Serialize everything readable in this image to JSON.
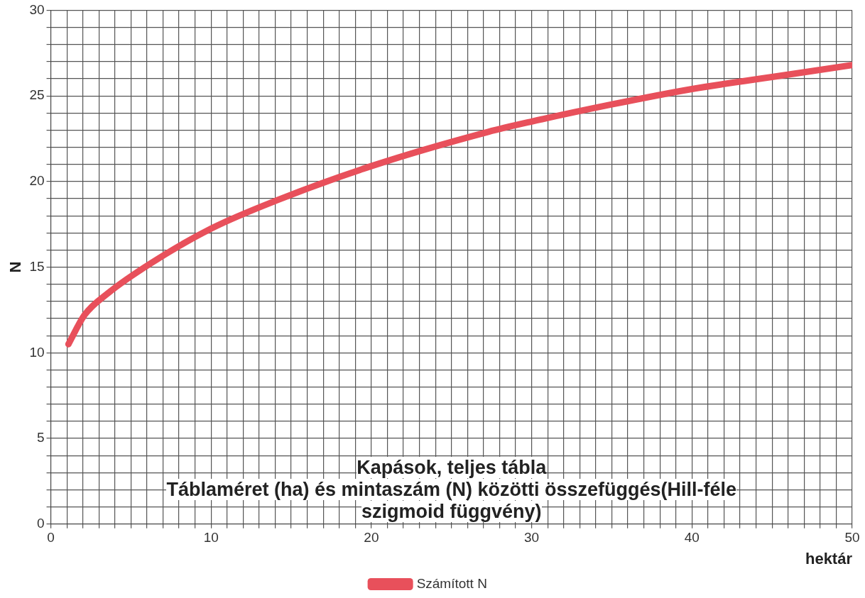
{
  "chart_data": {
    "type": "line",
    "title": "Kapások, teljes tábla",
    "subtitle": "Táblaméret (ha) és mintaszám (N) közötti összefüggés(Hill-féle szigmoid függvény)",
    "xlabel": "hektár",
    "ylabel": "N",
    "series": [
      {
        "name": "Számított N",
        "color": "#e8505b",
        "x": [
          1.1,
          2.1,
          3.6,
          6.2,
          10,
          14.1,
          20,
          27.3,
          30,
          35,
          40,
          45,
          50
        ],
        "values": [
          10.5,
          12.2,
          13.5,
          15.2,
          17.25,
          18.9,
          20.9,
          22.9,
          23.5,
          24.5,
          25.4,
          26.1,
          26.8
        ]
      }
    ],
    "xlim": [
      0,
      50
    ],
    "ylim": [
      0,
      30
    ],
    "xticks": [
      0,
      {
        "value": 1,
        "label": null
      },
      {
        "value": 2,
        "label": null
      },
      {
        "value": 3,
        "label": null
      },
      {
        "value": 4,
        "label": null
      },
      {
        "value": 5,
        "label": null
      },
      {
        "value": 6,
        "label": null
      },
      {
        "value": 7,
        "label": null
      },
      {
        "value": 8,
        "label": null
      },
      {
        "value": 9,
        "label": null
      },
      10,
      {
        "value": 11,
        "label": null
      },
      {
        "value": 12,
        "label": null
      },
      {
        "value": 13,
        "label": null
      },
      {
        "value": 14,
        "label": null
      },
      {
        "value": 15,
        "label": null
      },
      {
        "value": 16,
        "label": null
      },
      {
        "value": 17,
        "label": null
      },
      {
        "value": 18,
        "label": null
      },
      {
        "value": 19,
        "label": null
      },
      20,
      {
        "value": 21,
        "label": null
      },
      {
        "value": 22,
        "label": null
      },
      {
        "value": 23,
        "label": null
      },
      {
        "value": 24,
        "label": null
      },
      {
        "value": 25,
        "label": null
      },
      {
        "value": 26,
        "label": null
      },
      {
        "value": 27,
        "label": null
      },
      {
        "value": 28,
        "label": null
      },
      {
        "value": 29,
        "label": null
      },
      30,
      {
        "value": 31,
        "label": null
      },
      {
        "value": 32,
        "label": null
      },
      {
        "value": 33,
        "label": null
      },
      {
        "value": 34,
        "label": null
      },
      {
        "value": 35,
        "label": null
      },
      {
        "value": 36,
        "label": null
      },
      {
        "value": 37,
        "label": null
      },
      {
        "value": 38,
        "label": null
      },
      {
        "value": 39,
        "label": null
      },
      40,
      {
        "value": 41,
        "label": null
      },
      {
        "value": 42,
        "label": null
      },
      {
        "value": 43,
        "label": null
      },
      {
        "value": 44,
        "label": null
      },
      {
        "value": 45,
        "label": null
      },
      {
        "value": 46,
        "label": null
      },
      {
        "value": 47,
        "label": null
      },
      {
        "value": 48,
        "label": null
      },
      {
        "value": 49,
        "label": null
      },
      50
    ],
    "yticks": [
      0,
      {
        "value": 1,
        "label": null
      },
      {
        "value": 2,
        "label": null
      },
      {
        "value": 3,
        "label": null
      },
      {
        "value": 4,
        "label": null
      },
      5,
      {
        "value": 6,
        "label": null
      },
      {
        "value": 7,
        "label": null
      },
      {
        "value": 8,
        "label": null
      },
      {
        "value": 9,
        "label": null
      },
      10,
      {
        "value": 11,
        "label": null
      },
      {
        "value": 12,
        "label": null
      },
      {
        "value": 13,
        "label": null
      },
      {
        "value": 14,
        "label": null
      },
      15,
      {
        "value": 16,
        "label": null
      },
      {
        "value": 17,
        "label": null
      },
      {
        "value": 18,
        "label": null
      },
      {
        "value": 19,
        "label": null
      },
      20,
      {
        "value": 21,
        "label": null
      },
      {
        "value": 22,
        "label": null
      },
      {
        "value": 23,
        "label": null
      },
      {
        "value": 24,
        "label": null
      },
      25,
      {
        "value": 26,
        "label": null
      },
      {
        "value": 27,
        "label": null
      },
      {
        "value": 28,
        "label": null
      },
      {
        "value": 29,
        "label": null
      },
      30
    ],
    "grid": true,
    "legend": "bottom",
    "marker": "none",
    "line_style": "solid"
  }
}
